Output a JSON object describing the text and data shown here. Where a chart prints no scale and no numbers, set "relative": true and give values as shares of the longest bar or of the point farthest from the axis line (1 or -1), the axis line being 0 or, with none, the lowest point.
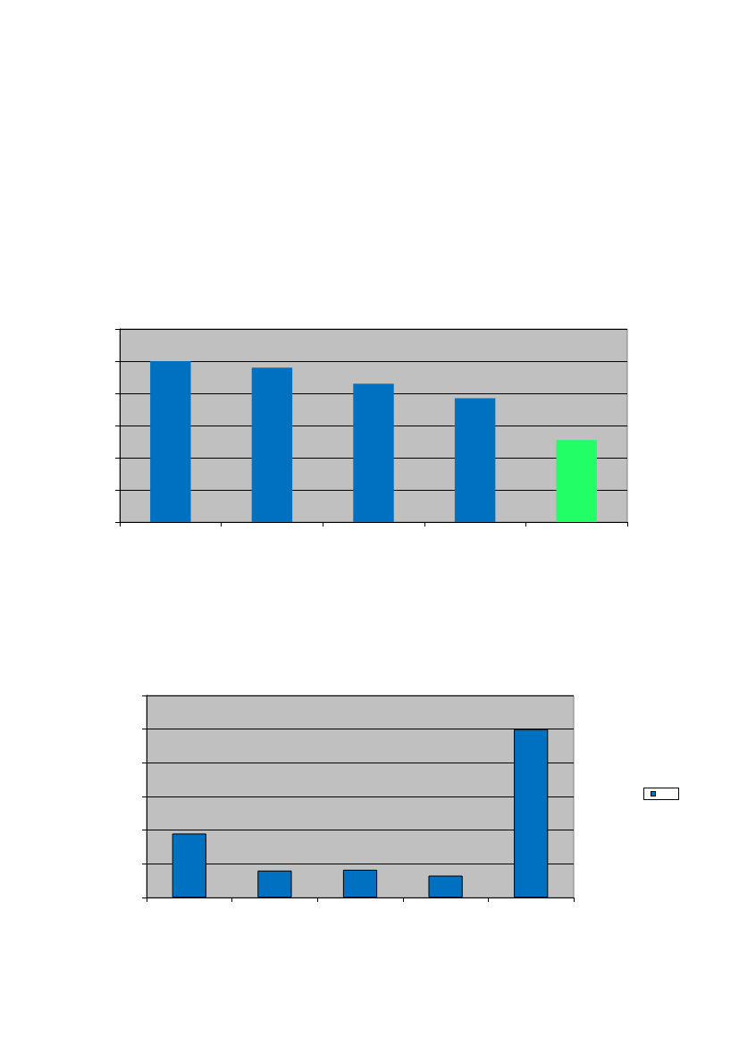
{
  "chart_data": [
    {
      "type": "bar",
      "relative": true,
      "categories": [
        null,
        null,
        null,
        null,
        null
      ],
      "grid": "y",
      "series": [
        {
          "colors": [
            "#0070c0",
            "#0070c0",
            "#0070c0",
            "#0070c0",
            "#22ff66"
          ],
          "values": [
            1,
            0.96,
            0.86,
            0.77,
            0.51
          ]
        }
      ]
    },
    {
      "type": "bar",
      "relative": true,
      "categories": [
        null,
        null,
        null,
        null,
        null
      ],
      "grid": "y",
      "series": [
        {
          "color": "#0070c0",
          "values": [
            0.38,
            0.16,
            0.165,
            0.13,
            1
          ]
        }
      ]
    }
  ]
}
